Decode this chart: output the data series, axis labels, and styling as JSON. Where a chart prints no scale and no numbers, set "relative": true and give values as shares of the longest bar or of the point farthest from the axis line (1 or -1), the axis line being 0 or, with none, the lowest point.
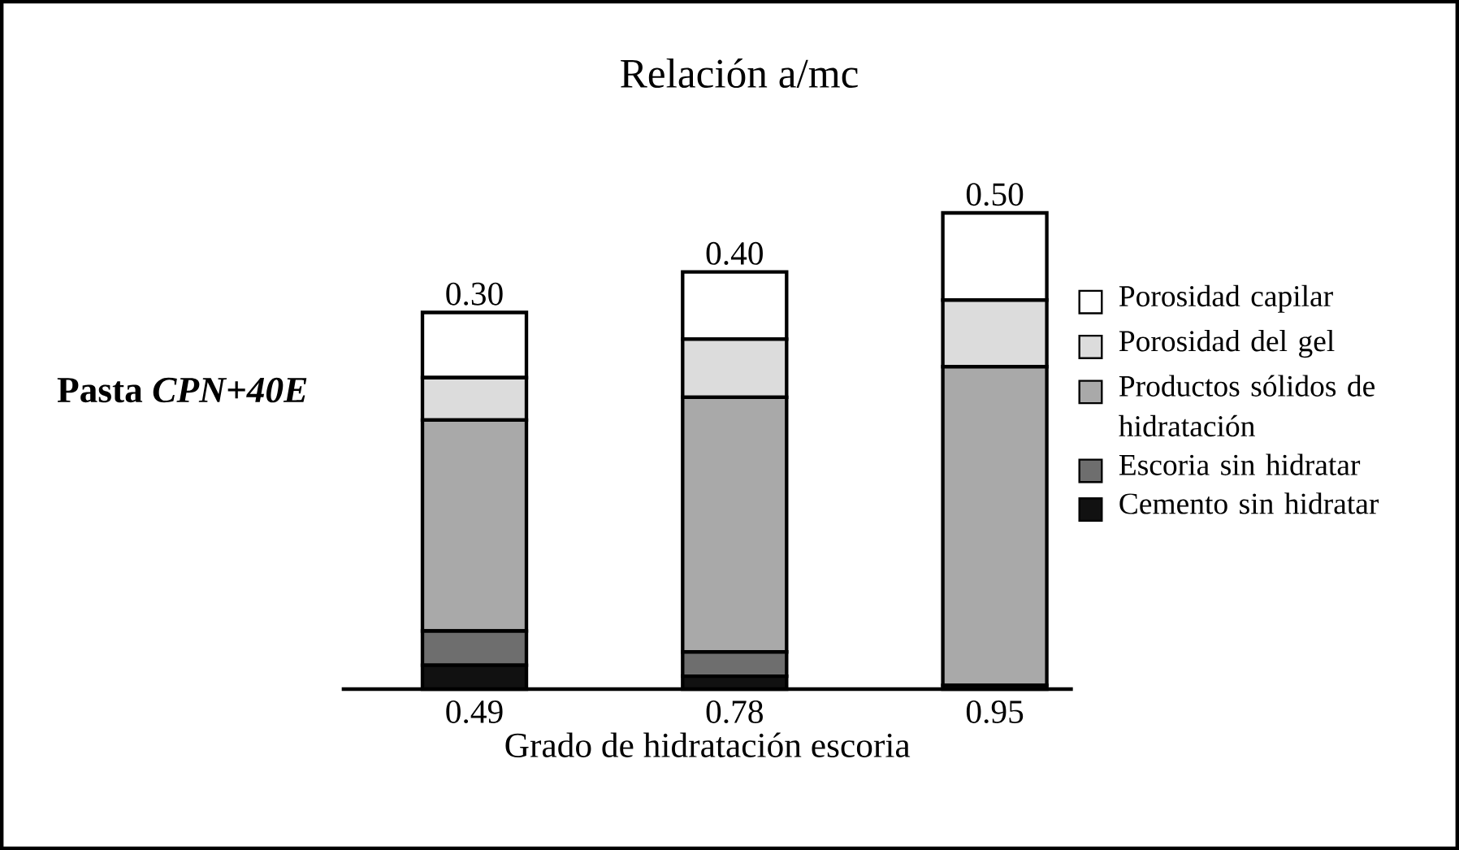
{
  "chart_data": {
    "type": "bar",
    "stacked": true,
    "relative": true,
    "title": "Relación a/mc",
    "xlabel": "Grado de hidratación escoria",
    "categories": [
      "0.49",
      "0.78",
      "0.95"
    ],
    "series": [
      {
        "name": "Cemento sin hidratar",
        "color": "#111111",
        "values": [
          0.05,
          0.027,
          0.008
        ]
      },
      {
        "name": "Escoria sin hidratar",
        "color": "#6e6e6e",
        "values": [
          0.072,
          0.051,
          0
        ]
      },
      {
        "name": "Productos sólidos de hidratación",
        "color": "#a9a9a9",
        "values": [
          0.443,
          0.535,
          0.669
        ]
      },
      {
        "name": "Porosidad del gel",
        "color": "#dcdcdc",
        "values": [
          0.089,
          0.122,
          0.14
        ]
      },
      {
        "name": "Porosidad capilar",
        "color": "#ffffff",
        "values": [
          0.137,
          0.141,
          0.183
        ]
      }
    ],
    "annotations": [
      {
        "text": "0.30",
        "x": "0.49",
        "y": 0.791
      },
      {
        "text": "0.40",
        "x": "0.78",
        "y": 0.876
      },
      {
        "text": "0.50",
        "x": "0.95",
        "y": 1.0
      },
      "Pasta *CPN+40E*"
    ],
    "legend": "right"
  }
}
